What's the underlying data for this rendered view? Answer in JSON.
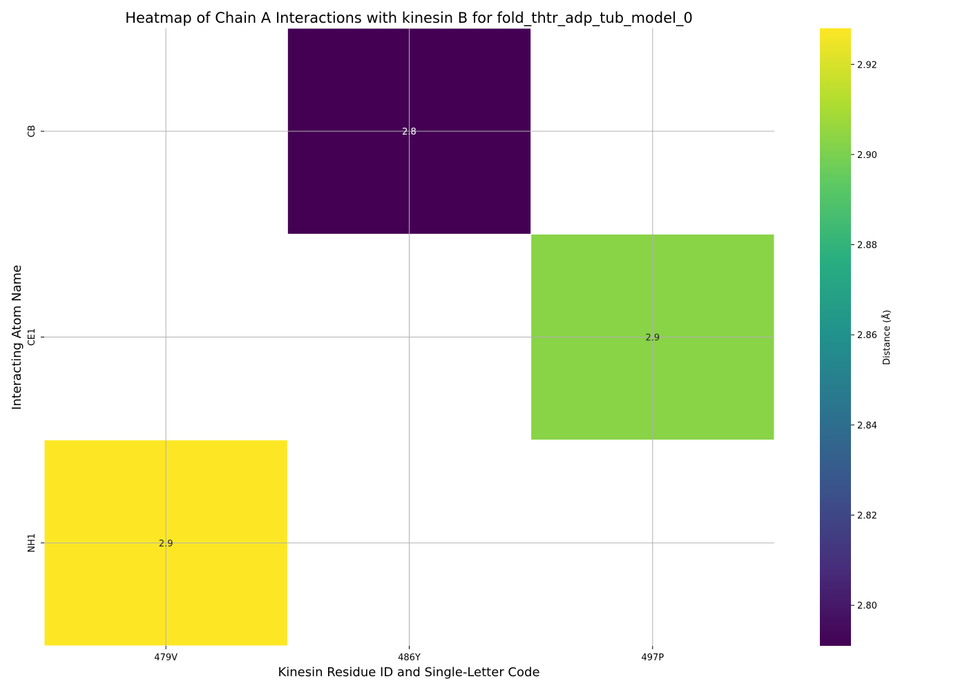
{
  "chart_data": {
    "type": "heatmap",
    "title": "Heatmap of Chain A Interactions with kinesin B for fold_thtr_adp_tub_model_0",
    "xlabel": "Kinesin Residue ID and Single-Letter Code",
    "ylabel": "Interacting Atom Name",
    "x_categories": [
      "479V",
      "486Y",
      "497P"
    ],
    "y_categories": [
      "CB",
      "CE1",
      "NH1"
    ],
    "cells": [
      {
        "x": "486Y",
        "y": "CB",
        "value": 2.791,
        "label": "2.8"
      },
      {
        "x": "497P",
        "y": "CE1",
        "value": 2.903,
        "label": "2.9"
      },
      {
        "x": "479V",
        "y": "NH1",
        "value": 2.928,
        "label": "2.9"
      }
    ],
    "colorbar": {
      "label": "Distance (Å)",
      "range": [
        2.791,
        2.928
      ],
      "ticks": [
        2.8,
        2.82,
        2.84,
        2.86,
        2.88,
        2.9,
        2.92
      ],
      "tick_labels": [
        "2.80",
        "2.82",
        "2.84",
        "2.86",
        "2.88",
        "2.90",
        "2.92"
      ],
      "colormap": "viridis"
    },
    "grid": true
  }
}
